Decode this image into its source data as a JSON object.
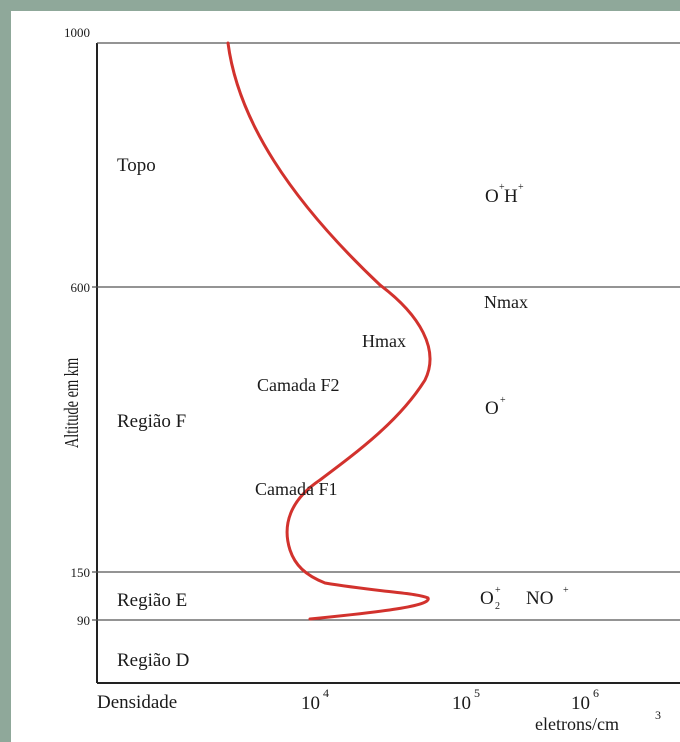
{
  "diagram": {
    "y_axis_label": "Altitude em km",
    "altitude_ticks": [
      "1000",
      "600",
      "150",
      "90"
    ],
    "x_axis": {
      "label": "Densidade",
      "unit_base": "eletrons/cm",
      "unit_exp": "3",
      "ticks": [
        {
          "base": "10",
          "exp": "4"
        },
        {
          "base": "10",
          "exp": "5"
        },
        {
          "base": "10",
          "exp": "6"
        }
      ]
    },
    "regions": {
      "topo": "Topo",
      "f": "Região F",
      "e": "Região E",
      "d": "Região D"
    },
    "curve_labels": {
      "hmax": "Hmax",
      "nmax": "Nmax",
      "f2": "Camada F2",
      "f1": "Camada F1"
    },
    "ions": {
      "oh_o": "O",
      "oh_o_sup": "+",
      "oh_h": "H",
      "oh_h_sup": "+",
      "o": "O",
      "o_sup": "+",
      "o2": "O",
      "o2_sup": "+",
      "o2_sub": "2",
      "no": "NO",
      "no_sup": "+"
    },
    "colors": {
      "curve": "#d2322d",
      "frame": "#8fa89a",
      "lines": "#555555"
    }
  }
}
